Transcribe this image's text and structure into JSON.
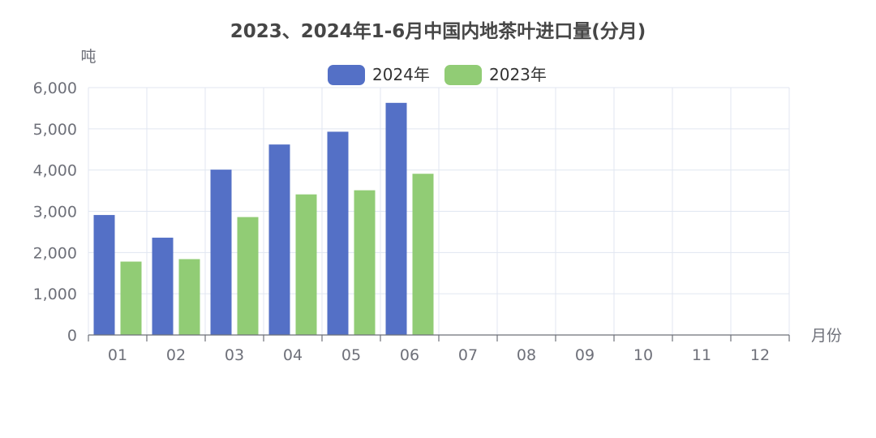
{
  "chart_data": {
    "type": "bar",
    "title": "2023、2024年1-6月中国内地茶叶进口量(分月)",
    "xlabel": "月份",
    "ylabel": "吨",
    "categories": [
      "01",
      "02",
      "03",
      "04",
      "05",
      "06",
      "07",
      "08",
      "09",
      "10",
      "11",
      "12"
    ],
    "series": [
      {
        "name": "2024年",
        "color": "#5470c6",
        "values": [
          2910,
          2360,
          4010,
          4620,
          4930,
          5630,
          null,
          null,
          null,
          null,
          null,
          null
        ]
      },
      {
        "name": "2023年",
        "color": "#91cc75",
        "values": [
          1780,
          1840,
          2860,
          3410,
          3510,
          3910,
          null,
          null,
          null,
          null,
          null,
          null
        ]
      }
    ],
    "yticks": [
      "0",
      "1,000",
      "2,000",
      "3,000",
      "4,000",
      "5,000",
      "6,000"
    ],
    "ylim": [
      0,
      6000
    ],
    "grid": true,
    "legend_position": "top-center"
  }
}
